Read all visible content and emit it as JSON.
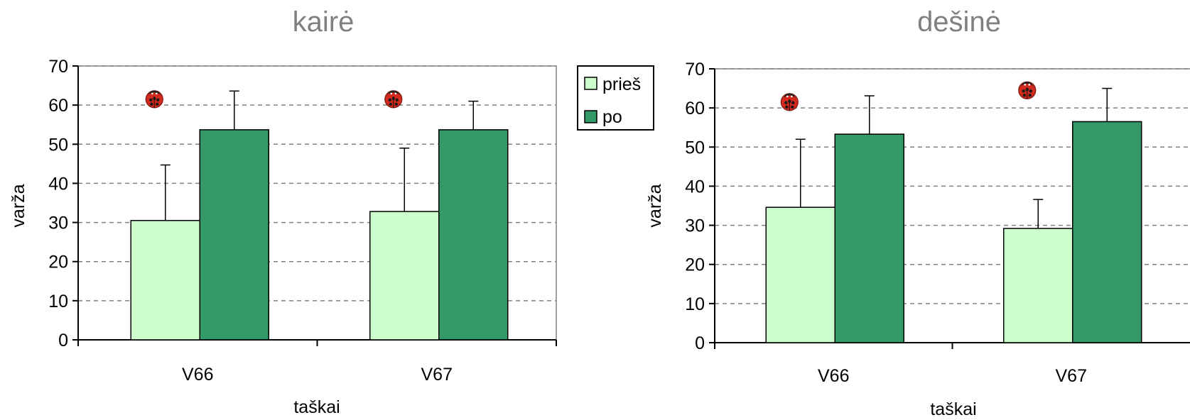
{
  "legend": {
    "items": [
      {
        "label": "prieš",
        "color": "#ccffcc"
      },
      {
        "label": "po",
        "color": "#339966"
      }
    ]
  },
  "chart_data": [
    {
      "type": "bar",
      "title": "kairė",
      "xlabel": "taškai",
      "ylabel": "varža",
      "categories": [
        "V66",
        "V67"
      ],
      "ylim": [
        0,
        70
      ],
      "yticks": [
        0,
        10,
        20,
        30,
        40,
        50,
        60,
        70
      ],
      "grid": true,
      "series": [
        {
          "name": "prieš",
          "color": "#ccffcc",
          "values": [
            30.5,
            32.8
          ],
          "error_plus": [
            14.2,
            16.2
          ]
        },
        {
          "name": "po",
          "color": "#339966",
          "values": [
            53.7,
            53.7
          ],
          "error_plus": [
            9.9,
            7.3
          ]
        }
      ],
      "markers": [
        {
          "category": "V66",
          "icon": "ladybug-icon",
          "y": 61.5
        },
        {
          "category": "V67",
          "icon": "ladybug-icon",
          "y": 61.5
        }
      ]
    },
    {
      "type": "bar",
      "title": "dešinė",
      "xlabel": "taškai",
      "ylabel": "varža",
      "categories": [
        "V66",
        "V67"
      ],
      "ylim": [
        0,
        70
      ],
      "yticks": [
        0,
        10,
        20,
        30,
        40,
        50,
        60,
        70
      ],
      "grid": true,
      "series": [
        {
          "name": "prieš",
          "color": "#ccffcc",
          "values": [
            34.6,
            29.2
          ],
          "error_plus": [
            17.4,
            7.4
          ]
        },
        {
          "name": "po",
          "color": "#339966",
          "values": [
            53.3,
            56.5
          ],
          "error_plus": [
            9.8,
            8.5
          ]
        }
      ],
      "markers": [
        {
          "category": "V66",
          "icon": "ladybug-icon",
          "y": 61.5
        },
        {
          "category": "V67",
          "icon": "ladybug-icon",
          "y": 64.5
        }
      ]
    }
  ]
}
